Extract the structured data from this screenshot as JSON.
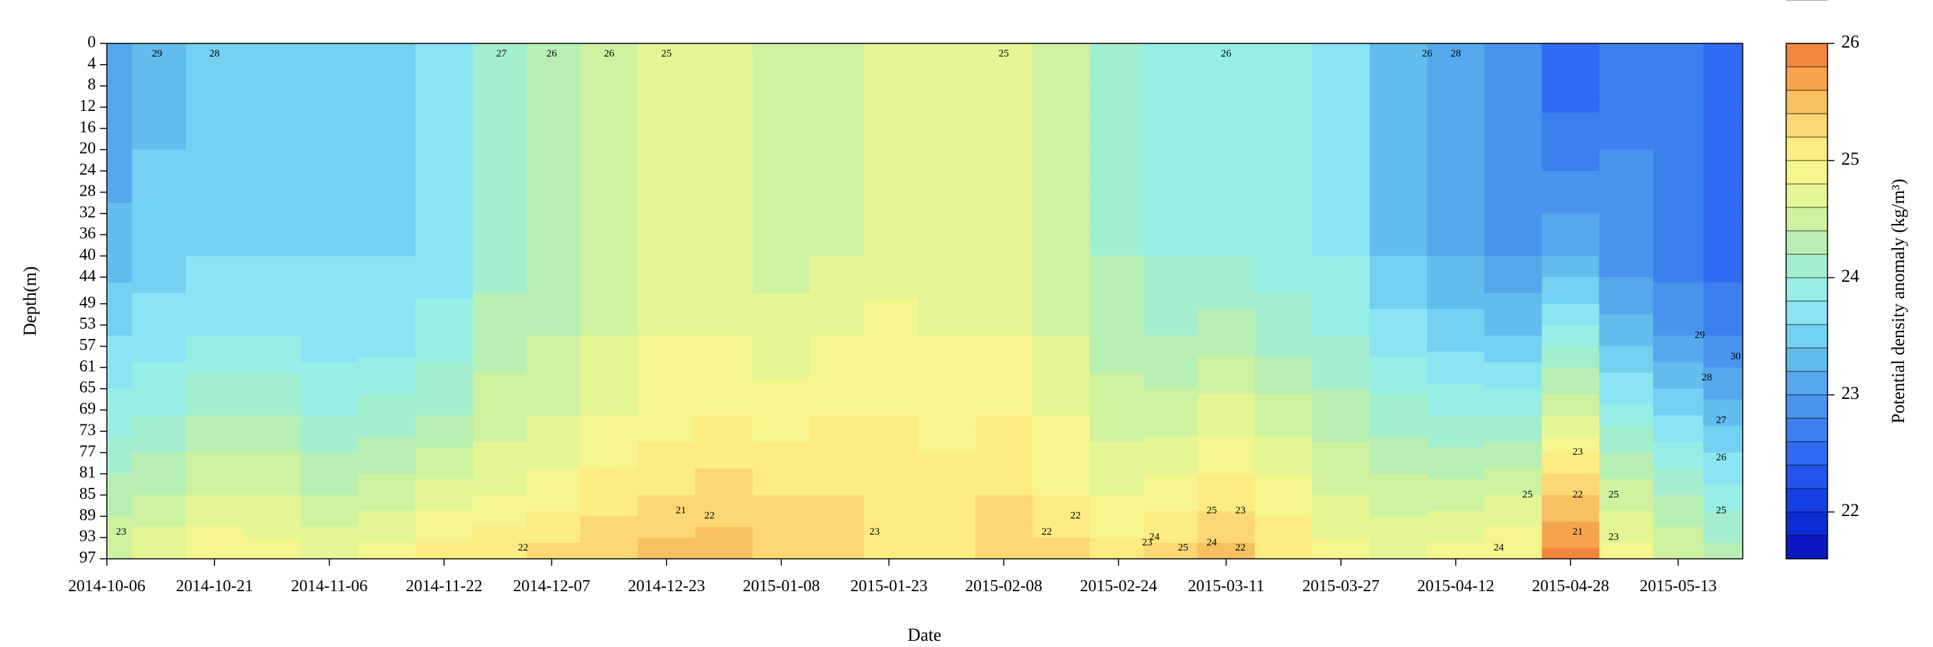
{
  "chart_data": {
    "type": "heatmap",
    "subtype": "filled-contour",
    "title": "",
    "xlabel": "Date",
    "ylabel": "Depth(m)",
    "x_tick_labels": [
      "2014-10-06",
      "2014-10-21",
      "2014-11-06",
      "2014-11-22",
      "2014-12-07",
      "2014-12-23",
      "2015-01-08",
      "2015-01-23",
      "2015-02-08",
      "2015-02-24",
      "2015-03-11",
      "2015-03-27",
      "2015-04-12",
      "2015-04-28",
      "2015-05-13"
    ],
    "y_tick_labels": [
      "0",
      "4",
      "8",
      "12",
      "16",
      "20",
      "24",
      "28",
      "32",
      "36",
      "40",
      "44",
      "49",
      "53",
      "57",
      "61",
      "65",
      "69",
      "73",
      "77",
      "81",
      "85",
      "89",
      "93",
      "97"
    ],
    "xlim": [
      "2014-10-06",
      "2015-05-22"
    ],
    "ylim": [
      97,
      0
    ],
    "y_reversed": true,
    "colorbar": {
      "label": "Potential density anomaly (kg/m³)",
      "tick_labels": [
        "22",
        "23",
        "24",
        "25",
        "26"
      ],
      "range": [
        21.6,
        26.0
      ],
      "levels": [
        21.6,
        21.8,
        22.0,
        22.2,
        22.4,
        22.6,
        22.8,
        23.0,
        23.2,
        23.4,
        23.6,
        23.8,
        24.0,
        24.2,
        24.4,
        24.6,
        24.8,
        25.0,
        25.2,
        25.4,
        25.6,
        25.8,
        26.0
      ],
      "colors": [
        "#0a18c2",
        "#0c2cd6",
        "#1640e6",
        "#2255ee",
        "#2f6af0",
        "#3c80f0",
        "#4894ee",
        "#55a8ec",
        "#62bcec",
        "#74d0f0",
        "#8ae4f4",
        "#96eee6",
        "#a4eed0",
        "#b8f0b4",
        "#cef2a0",
        "#e4f694",
        "#f6f68e",
        "#fcec82",
        "#fbd874",
        "#f9c060",
        "#f6a44c",
        "#f3853e",
        "#ec6030",
        "#dc4a28"
      ]
    },
    "depths": [
      0,
      4,
      8,
      12,
      16,
      20,
      24,
      28,
      32,
      36,
      40,
      44,
      49,
      53,
      57,
      61,
      65,
      69,
      73,
      77,
      81,
      85,
      89,
      93,
      97
    ],
    "dates": [
      "2014-10-06",
      "2014-10-13",
      "2014-10-21",
      "2014-10-29",
      "2014-11-06",
      "2014-11-14",
      "2014-11-22",
      "2014-11-30",
      "2014-12-07",
      "2014-12-15",
      "2014-12-23",
      "2014-12-31",
      "2015-01-08",
      "2015-01-16",
      "2015-01-23",
      "2015-01-31",
      "2015-02-08",
      "2015-02-16",
      "2015-02-24",
      "2015-03-03",
      "2015-03-11",
      "2015-03-19",
      "2015-03-27",
      "2015-04-04",
      "2015-04-12",
      "2015-04-20",
      "2015-04-28",
      "2015-05-06",
      "2015-05-13",
      "2015-05-20"
    ],
    "density_profiles": [
      [
        23.0,
        23.1,
        23.3,
        23.6,
        23.9,
        24.3,
        24.6
      ],
      [
        23.3,
        23.4,
        23.5,
        23.7,
        24.0,
        24.4,
        24.8
      ],
      [
        23.5,
        23.5,
        23.6,
        23.8,
        24.2,
        24.6,
        25.0
      ],
      [
        23.5,
        23.5,
        23.6,
        23.8,
        24.2,
        24.6,
        24.9
      ],
      [
        23.5,
        23.5,
        23.6,
        23.7,
        24.0,
        24.4,
        24.8
      ],
      [
        23.5,
        23.5,
        23.6,
        23.7,
        24.1,
        24.5,
        24.9
      ],
      [
        23.6,
        23.6,
        23.7,
        23.9,
        24.2,
        24.7,
        25.1
      ],
      [
        24.0,
        24.0,
        24.1,
        24.3,
        24.5,
        24.8,
        25.2
      ],
      [
        24.2,
        24.2,
        24.2,
        24.4,
        24.6,
        24.9,
        25.3
      ],
      [
        24.4,
        24.4,
        24.5,
        24.6,
        24.8,
        25.1,
        25.4
      ],
      [
        24.6,
        24.6,
        24.7,
        24.8,
        24.9,
        25.2,
        25.5
      ],
      [
        24.6,
        24.6,
        24.7,
        24.8,
        25.0,
        25.3,
        25.5
      ],
      [
        24.4,
        24.4,
        24.5,
        24.7,
        24.9,
        25.2,
        25.4
      ],
      [
        24.5,
        24.5,
        24.6,
        24.8,
        25.0,
        25.2,
        25.3
      ],
      [
        24.6,
        24.6,
        24.7,
        24.9,
        25.0,
        25.1,
        25.2
      ],
      [
        24.7,
        24.6,
        24.7,
        24.8,
        24.9,
        25.1,
        25.2
      ],
      [
        24.6,
        24.6,
        24.7,
        24.8,
        25.0,
        25.2,
        25.4
      ],
      [
        24.4,
        24.4,
        24.5,
        24.6,
        24.8,
        25.0,
        25.3
      ],
      [
        24.1,
        24.1,
        24.2,
        24.3,
        24.5,
        24.8,
        25.1
      ],
      [
        23.9,
        23.9,
        24.0,
        24.2,
        24.5,
        24.9,
        25.3
      ],
      [
        23.9,
        23.9,
        24.0,
        24.3,
        24.7,
        25.1,
        25.5
      ],
      [
        23.8,
        23.8,
        23.9,
        24.1,
        24.5,
        24.9,
        25.2
      ],
      [
        23.7,
        23.7,
        23.8,
        24.0,
        24.3,
        24.6,
        24.9
      ],
      [
        23.3,
        23.3,
        23.4,
        23.7,
        24.1,
        24.5,
        24.8
      ],
      [
        23.1,
        23.1,
        23.2,
        23.5,
        24.0,
        24.5,
        24.9
      ],
      [
        22.8,
        22.9,
        23.0,
        23.4,
        24.0,
        24.6,
        25.0
      ],
      [
        22.4,
        22.7,
        23.2,
        23.9,
        24.6,
        25.4,
        25.9
      ],
      [
        22.7,
        22.8,
        22.9,
        23.3,
        23.9,
        24.5,
        24.9
      ],
      [
        22.6,
        22.6,
        22.7,
        23.0,
        23.6,
        24.2,
        24.6
      ],
      [
        22.4,
        22.4,
        22.5,
        22.8,
        23.3,
        23.9,
        24.3
      ]
    ],
    "profile_depths": [
      0,
      20,
      40,
      55,
      70,
      85,
      97
    ],
    "contour_labels": [
      {
        "text": "29",
        "date": "2014-10-13",
        "depth": 2
      },
      {
        "text": "28",
        "date": "2014-10-21",
        "depth": 2
      },
      {
        "text": "27",
        "date": "2014-11-30",
        "depth": 2
      },
      {
        "text": "26",
        "date": "2014-12-07",
        "depth": 2
      },
      {
        "text": "26",
        "date": "2014-12-15",
        "depth": 2
      },
      {
        "text": "25",
        "date": "2014-12-23",
        "depth": 2
      },
      {
        "text": "25",
        "date": "2015-02-08",
        "depth": 2
      },
      {
        "text": "26",
        "date": "2015-03-11",
        "depth": 2
      },
      {
        "text": "26",
        "date": "2015-04-08",
        "depth": 2
      },
      {
        "text": "28",
        "date": "2015-04-12",
        "depth": 2
      },
      {
        "text": "23",
        "date": "2014-10-08",
        "depth": 92
      },
      {
        "text": "22",
        "date": "2014-12-03",
        "depth": 95
      },
      {
        "text": "21",
        "date": "2014-12-25",
        "depth": 88
      },
      {
        "text": "22",
        "date": "2014-12-29",
        "depth": 89
      },
      {
        "text": "23",
        "date": "2015-01-21",
        "depth": 92
      },
      {
        "text": "22",
        "date": "2015-02-14",
        "depth": 92
      },
      {
        "text": "22",
        "date": "2015-02-18",
        "depth": 89
      },
      {
        "text": "23",
        "date": "2015-02-28",
        "depth": 94
      },
      {
        "text": "24",
        "date": "2015-03-01",
        "depth": 93
      },
      {
        "text": "25",
        "date": "2015-03-05",
        "depth": 95
      },
      {
        "text": "25",
        "date": "2015-03-09",
        "depth": 88
      },
      {
        "text": "24",
        "date": "2015-03-09",
        "depth": 94
      },
      {
        "text": "23",
        "date": "2015-03-13",
        "depth": 88
      },
      {
        "text": "22",
        "date": "2015-03-13",
        "depth": 95
      },
      {
        "text": "24",
        "date": "2015-04-18",
        "depth": 95
      },
      {
        "text": "25",
        "date": "2015-04-22",
        "depth": 85
      },
      {
        "text": "23",
        "date": "2015-04-29",
        "depth": 77
      },
      {
        "text": "22",
        "date": "2015-04-29",
        "depth": 85
      },
      {
        "text": "21",
        "date": "2015-04-29",
        "depth": 92
      },
      {
        "text": "25",
        "date": "2015-05-04",
        "depth": 85
      },
      {
        "text": "23",
        "date": "2015-05-04",
        "depth": 93
      },
      {
        "text": "29",
        "date": "2015-05-16",
        "depth": 55
      },
      {
        "text": "28",
        "date": "2015-05-17",
        "depth": 63
      },
      {
        "text": "27",
        "date": "2015-05-19",
        "depth": 71
      },
      {
        "text": "26",
        "date": "2015-05-19",
        "depth": 78
      },
      {
        "text": "25",
        "date": "2015-05-19",
        "depth": 88
      },
      {
        "text": "30",
        "date": "2015-05-21",
        "depth": 59
      }
    ]
  }
}
